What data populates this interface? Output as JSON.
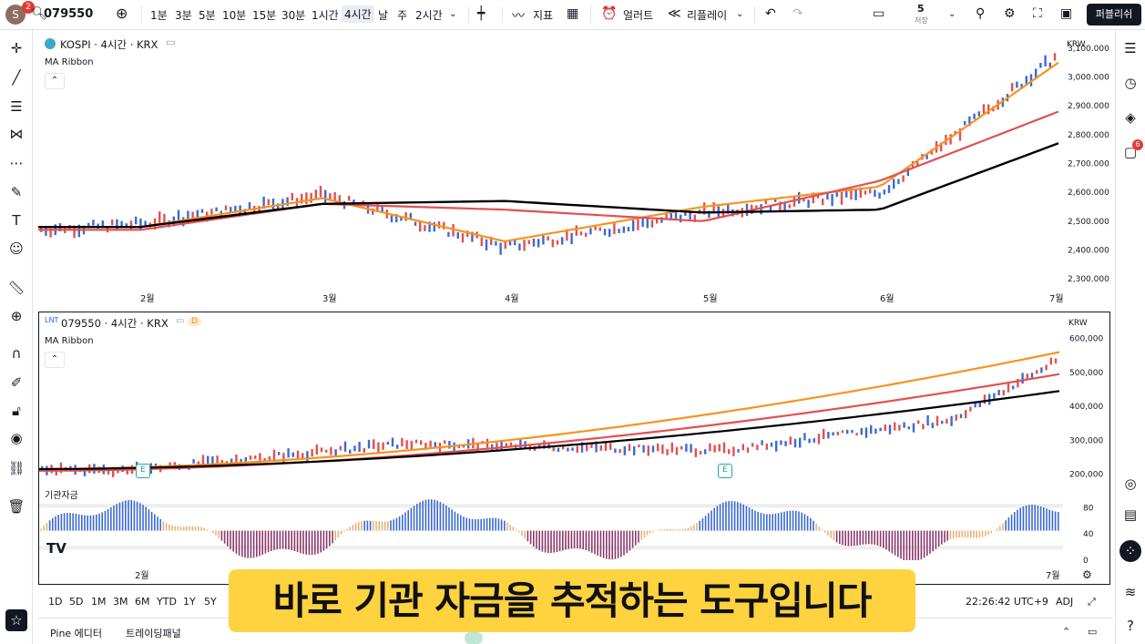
{
  "top_toolbar": {
    "avatar_letter": "S",
    "avatar_badge": "2",
    "symbol": "079550",
    "intervals": [
      "1분",
      "3분",
      "5분",
      "10분",
      "15분",
      "30분",
      "1시간",
      "4시간",
      "날",
      "주",
      "2시간"
    ],
    "selected_interval": "4시간",
    "indicators_label": "지표",
    "alert_label": "얼러트",
    "replay_label": "리플레이",
    "save_count": "5",
    "save_label": "저장",
    "publish_label": "퍼블리쉬"
  },
  "chart_top": {
    "symbol_line": "KOSPI · 4시간 · KRX",
    "indicator": "MA Ribbon",
    "currency": "KRW",
    "y_ticks": [
      "3,100.000",
      "3,000.000",
      "2,900.000",
      "2,800.000",
      "2,700.000",
      "2,600.000",
      "2,500.000",
      "2,400.000",
      "2,300.000"
    ],
    "x_ticks": [
      "2월",
      "3월",
      "4월",
      "5월",
      "6월",
      "7월"
    ]
  },
  "chart_bottom": {
    "symbol_line": "079550 · 4시간 · KRX",
    "badge": "D",
    "indicator": "MA Ribbon",
    "currency": "KRW",
    "y_ticks": [
      "600,000",
      "500,000",
      "400,000",
      "300,000",
      "200,000"
    ],
    "earnings_marker": "E",
    "osc_label": "기관자금",
    "osc_ticks": [
      "80",
      "40",
      "0"
    ],
    "x_ticks": [
      "2월",
      "7월"
    ]
  },
  "chart_data": [
    {
      "type": "line",
      "x": [
        "2월",
        "3월",
        "4월",
        "5월",
        "6월",
        "7월"
      ],
      "series": [
        {
          "values": [
            2480,
            2580,
            2430,
            2550,
            2620,
            3050
          ],
          "color": "#f7931e"
        },
        {
          "values": [
            2470,
            2560,
            2540,
            2500,
            2640,
            2880
          ],
          "color": "#e35050"
        },
        {
          "values": [
            2480,
            2560,
            2570,
            2530,
            2540,
            2770
          ],
          "color": "#000000"
        }
      ],
      "ylim": [
        2250,
        3150
      ]
    },
    {
      "type": "line",
      "x": [
        "2월",
        "7월"
      ],
      "series": [
        {
          "values": [
            215000,
            560000
          ],
          "color": "#f7931e"
        },
        {
          "values": [
            210000,
            495000
          ],
          "color": "#e35050"
        },
        {
          "values": [
            215000,
            445000
          ],
          "color": "#000000"
        }
      ],
      "ylim": [
        180000,
        650000
      ]
    }
  ],
  "bottom_toolbar": {
    "ranges": [
      "1D",
      "5D",
      "1M",
      "3M",
      "6M",
      "YTD",
      "1Y",
      "5Y"
    ],
    "time": "22:26:42 UTC+9",
    "adj": "ADJ"
  },
  "pine_bar": {
    "pine_editor": "Pine 에디터",
    "trading_panel": "트레이딩패널"
  },
  "right_badge": "6",
  "caption": "바로 기관 자금을 추적하는 도구입니다",
  "colors": {
    "up": "#e35050",
    "down": "#3b6ad4",
    "ma_fast": "#f7931e",
    "ma_mid": "#e35050",
    "ma_slow": "#000000",
    "caption_bg": "#ffd23f"
  }
}
